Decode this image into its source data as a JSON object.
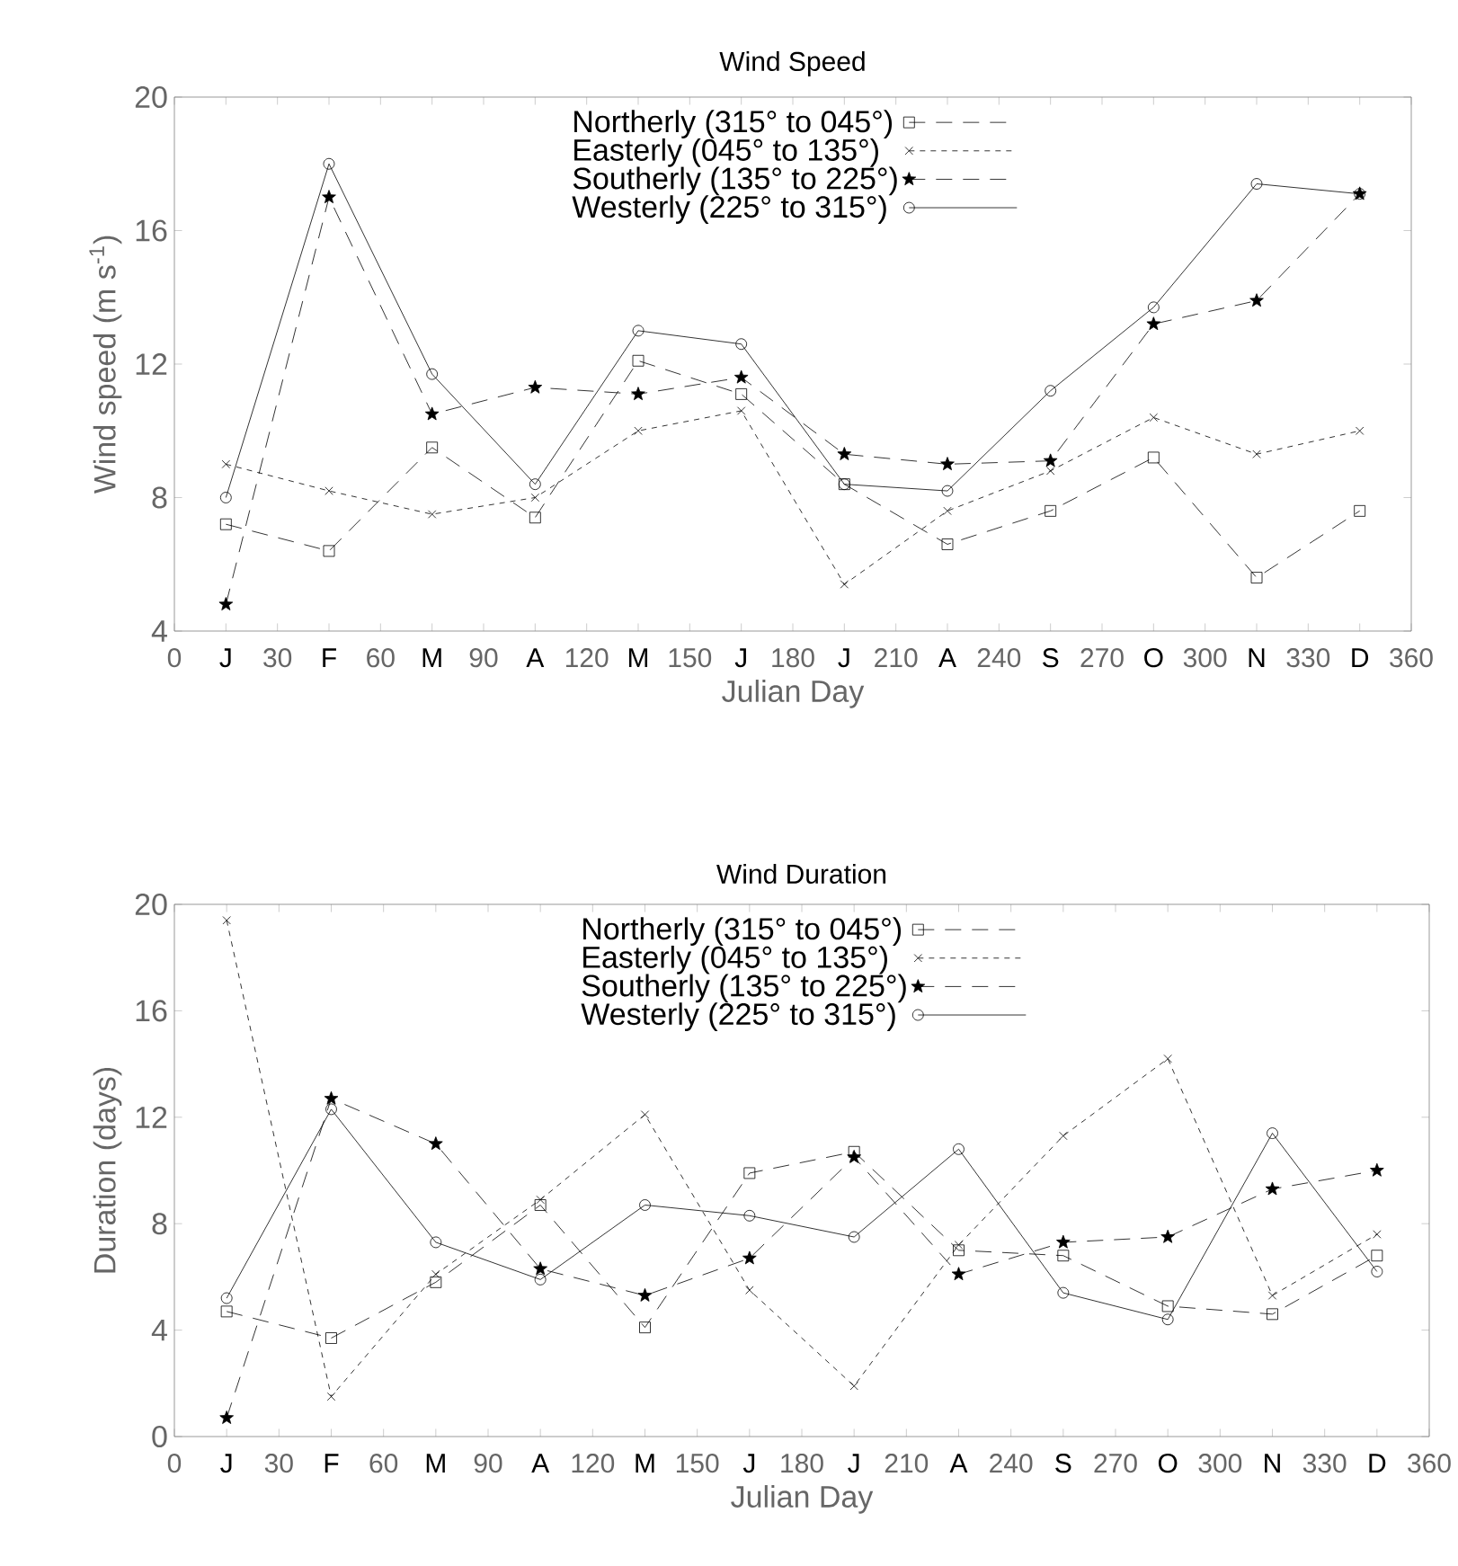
{
  "chart_data": [
    {
      "type": "line",
      "title": "Wind Speed",
      "xlabel": "Julian Day",
      "ylabel": "Wind speed (m s$^{-1}$)",
      "x": [
        15,
        45,
        75,
        105,
        135,
        165,
        195,
        225,
        255,
        285,
        315,
        345
      ],
      "xlim": [
        0,
        360
      ],
      "ylim": [
        4,
        20
      ],
      "yticks": [
        4,
        8,
        12,
        16,
        20
      ],
      "xticks": [
        0,
        {
          "value": 15,
          "label": "J"
        },
        30,
        {
          "value": 45,
          "label": "F"
        },
        60,
        {
          "value": 75,
          "label": "M"
        },
        90,
        {
          "value": 105,
          "label": "A"
        },
        120,
        {
          "value": 135,
          "label": "M"
        },
        150,
        {
          "value": 165,
          "label": "J"
        },
        180,
        {
          "value": 195,
          "label": "J"
        },
        210,
        {
          "value": 225,
          "label": "A"
        },
        240,
        {
          "value": 255,
          "label": "S"
        },
        270,
        {
          "value": 285,
          "label": "O"
        },
        300,
        {
          "value": 315,
          "label": "N"
        },
        330,
        {
          "value": 345,
          "label": "D"
        },
        360
      ],
      "legend": "top",
      "grid": false,
      "series": [
        {
          "name": "Northerly (315° to 045°)",
          "color": "#000000",
          "marker": "square",
          "line_style": "dashed",
          "values": [
            7.2,
            6.4,
            9.5,
            7.4,
            12.1,
            11.1,
            8.4,
            6.6,
            7.6,
            9.2,
            5.6,
            7.6
          ]
        },
        {
          "name": "Easterly (045° to 135°)",
          "color": "#000000",
          "marker": "cross",
          "line_style": "dotted",
          "values": [
            9.0,
            8.2,
            7.5,
            8.0,
            10.0,
            10.6,
            5.4,
            7.6,
            8.8,
            10.4,
            9.3,
            10.0
          ]
        },
        {
          "name": "Southerly (135° to 225°)",
          "color": "#000000",
          "marker": "star",
          "line_style": "dashed",
          "values": [
            4.8,
            17.0,
            10.5,
            11.3,
            11.1,
            11.6,
            9.3,
            9.0,
            9.1,
            13.2,
            13.9,
            17.1
          ]
        },
        {
          "name": "Westerly (225° to 315°)",
          "color": "#000000",
          "marker": "circle",
          "line_style": "solid",
          "values": [
            8.0,
            18.0,
            11.7,
            8.4,
            13.0,
            12.6,
            8.4,
            8.2,
            11.2,
            13.7,
            17.4,
            17.1
          ]
        }
      ]
    },
    {
      "type": "line",
      "title": "Wind Duration",
      "xlabel": "Julian Day",
      "ylabel": "Duration (days)",
      "x": [
        15,
        45,
        75,
        105,
        135,
        165,
        195,
        225,
        255,
        285,
        315,
        345
      ],
      "xlim": [
        0,
        360
      ],
      "ylim": [
        0,
        20
      ],
      "yticks": [
        0,
        4,
        8,
        12,
        16,
        20
      ],
      "xticks": [
        0,
        {
          "value": 15,
          "label": "J"
        },
        30,
        {
          "value": 45,
          "label": "F"
        },
        60,
        {
          "value": 75,
          "label": "M"
        },
        90,
        {
          "value": 105,
          "label": "A"
        },
        120,
        {
          "value": 135,
          "label": "M"
        },
        150,
        {
          "value": 165,
          "label": "J"
        },
        180,
        {
          "value": 195,
          "label": "J"
        },
        210,
        {
          "value": 225,
          "label": "A"
        },
        240,
        {
          "value": 255,
          "label": "S"
        },
        270,
        {
          "value": 285,
          "label": "O"
        },
        300,
        {
          "value": 315,
          "label": "N"
        },
        330,
        {
          "value": 345,
          "label": "D"
        },
        360
      ],
      "legend": "top",
      "grid": false,
      "series": [
        {
          "name": "Northerly (315° to 045°)",
          "color": "#000000",
          "marker": "square",
          "line_style": "dashed",
          "values": [
            4.7,
            3.7,
            5.8,
            8.7,
            4.1,
            9.9,
            10.7,
            7.0,
            6.8,
            4.9,
            4.6,
            6.8
          ]
        },
        {
          "name": "Easterly (045° to 135°)",
          "color": "#000000",
          "marker": "cross",
          "line_style": "dotted",
          "values": [
            19.4,
            1.5,
            6.1,
            8.9,
            12.1,
            5.5,
            1.9,
            7.2,
            11.3,
            14.2,
            5.3,
            7.6
          ]
        },
        {
          "name": "Southerly (135° to 225°)",
          "color": "#000000",
          "marker": "star",
          "line_style": "dashed",
          "values": [
            0.7,
            12.7,
            11.0,
            6.3,
            5.3,
            6.7,
            10.5,
            6.1,
            7.3,
            7.5,
            9.3,
            10.0
          ]
        },
        {
          "name": "Westerly (225° to 315°)",
          "color": "#000000",
          "marker": "circle",
          "line_style": "solid",
          "values": [
            5.2,
            12.3,
            7.3,
            5.9,
            8.7,
            8.3,
            7.5,
            10.8,
            5.4,
            4.4,
            11.4,
            6.2
          ]
        }
      ]
    }
  ]
}
